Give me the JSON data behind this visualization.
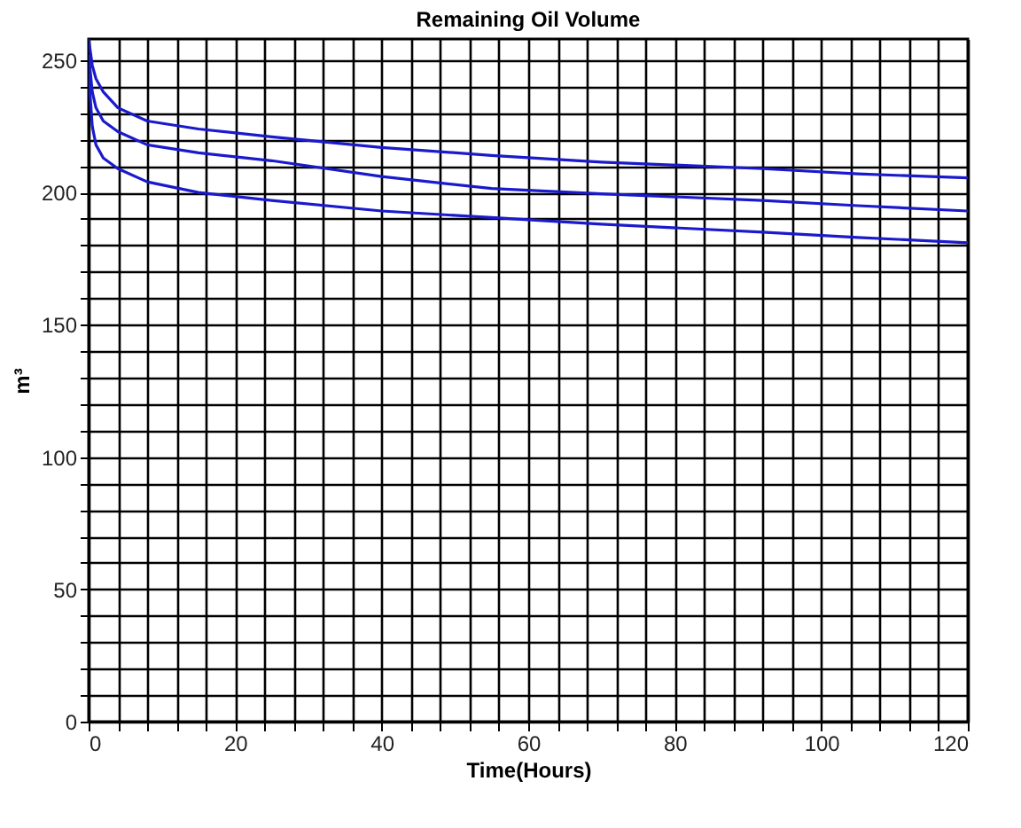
{
  "chart_data": {
    "type": "line",
    "title": "Remaining Oil Volume",
    "xlabel": "Time(Hours)",
    "ylabel": "m³",
    "x": [
      0,
      0.5,
      1,
      2,
      4,
      8,
      15,
      25,
      40,
      55,
      70,
      92,
      105,
      120
    ],
    "series": [
      {
        "color": "#1a1acc",
        "values": [
          258,
          248,
          243,
          238,
          232,
          227,
          224,
          221,
          217,
          214,
          211.5,
          209,
          207,
          205.5
        ]
      },
      {
        "color": "#1a1acc",
        "values": [
          252,
          238,
          232,
          227,
          223,
          218,
          215,
          212,
          206,
          201.5,
          199.5,
          197,
          195,
          193
        ]
      },
      {
        "color": "#1a1acc",
        "values": [
          245,
          225,
          218,
          213,
          209,
          204,
          200,
          197,
          193,
          190.5,
          188,
          185,
          183,
          181
        ]
      }
    ],
    "xlim": [
      0,
      120
    ],
    "ylim": [
      0,
      258
    ],
    "xticks": [
      0,
      {
        "value": 4,
        "label": null
      },
      {
        "value": 8,
        "label": null
      },
      {
        "value": 12,
        "label": null
      },
      {
        "value": 16,
        "label": null
      },
      20,
      {
        "value": 24,
        "label": null
      },
      {
        "value": 28,
        "label": null
      },
      {
        "value": 32,
        "label": null
      },
      {
        "value": 36,
        "label": null
      },
      40,
      {
        "value": 44,
        "label": null
      },
      {
        "value": 48,
        "label": null
      },
      {
        "value": 52,
        "label": null
      },
      {
        "value": 56,
        "label": null
      },
      60,
      {
        "value": 64,
        "label": null
      },
      {
        "value": 68,
        "label": null
      },
      {
        "value": 72,
        "label": null
      },
      {
        "value": 76,
        "label": null
      },
      80,
      {
        "value": 84,
        "label": null
      },
      {
        "value": 88,
        "label": null
      },
      {
        "value": 92,
        "label": null
      },
      {
        "value": 96,
        "label": null
      },
      100,
      {
        "value": 104,
        "label": null
      },
      {
        "value": 108,
        "label": null
      },
      {
        "value": 112,
        "label": null
      },
      {
        "value": 116,
        "label": null
      },
      120
    ],
    "yticks": [
      0,
      {
        "value": 10,
        "label": null
      },
      {
        "value": 20,
        "label": null
      },
      {
        "value": 30,
        "label": null
      },
      {
        "value": 40,
        "label": null
      },
      50,
      {
        "value": 60,
        "label": null
      },
      {
        "value": 70,
        "label": null
      },
      {
        "value": 80,
        "label": null
      },
      {
        "value": 90,
        "label": null
      },
      100,
      {
        "value": 110,
        "label": null
      },
      {
        "value": 120,
        "label": null
      },
      {
        "value": 130,
        "label": null
      },
      {
        "value": 140,
        "label": null
      },
      150,
      {
        "value": 160,
        "label": null
      },
      {
        "value": 170,
        "label": null
      },
      {
        "value": 180,
        "label": null
      },
      {
        "value": 190,
        "label": null
      },
      200,
      {
        "value": 210,
        "label": null
      },
      {
        "value": 220,
        "label": null
      },
      {
        "value": 230,
        "label": null
      },
      {
        "value": 240,
        "label": null
      },
      250
    ],
    "grid": true,
    "line_style": "solid",
    "marker": "none"
  }
}
